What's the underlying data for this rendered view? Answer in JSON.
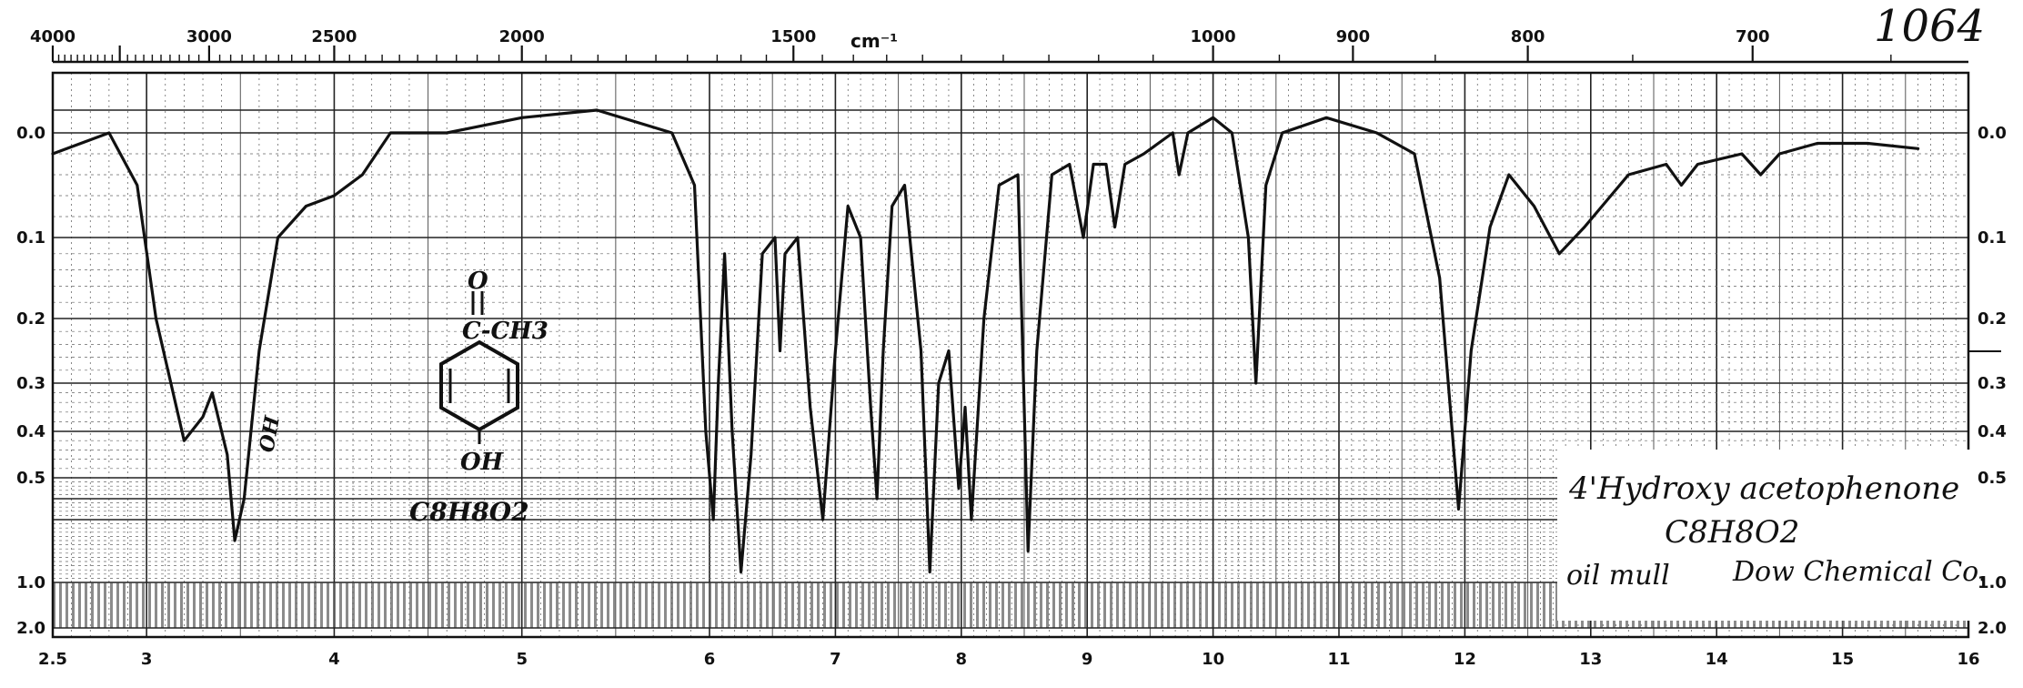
{
  "chart_data": {
    "type": "line",
    "title": "",
    "xlabel": "",
    "ylabel": "",
    "chart_number": "1064",
    "top_axis": {
      "unit_label": "cm⁻¹",
      "tick_labels": [
        "4000",
        "3000",
        "2500",
        "2000",
        "1500",
        "1000",
        "900",
        "800",
        "700"
      ],
      "tick_values": [
        4000,
        3000,
        2500,
        2000,
        1500,
        1000,
        900,
        800,
        700
      ]
    },
    "bottom_axis": {
      "tick_labels": [
        "2.5",
        "3",
        "4",
        "5",
        "6",
        "7",
        "8",
        "9",
        "10",
        "11",
        "12",
        "13",
        "14",
        "15",
        "16"
      ],
      "tick_values": [
        2.5,
        3,
        4,
        5,
        6,
        7,
        8,
        9,
        10,
        11,
        12,
        13,
        14,
        15,
        16
      ],
      "xlim": [
        2.5,
        16
      ]
    },
    "left_axis": {
      "tick_labels": [
        "0.0",
        "0.1",
        "0.2",
        "0.3",
        "0.4",
        "0.5",
        "1.0",
        "2.0"
      ],
      "tick_values": [
        0.0,
        0.1,
        0.2,
        0.3,
        0.4,
        0.5,
        1.0,
        2.0
      ]
    },
    "right_axis": {
      "tick_labels": [
        "0.0",
        "0.1",
        "0.2",
        "0.3",
        "0.4",
        "0.5",
        "1.0",
        "2.0"
      ],
      "tick_values": [
        0.0,
        0.1,
        0.2,
        0.3,
        0.4,
        0.5,
        1.0,
        2.0
      ]
    },
    "grid": true,
    "series": [
      {
        "points": [
          [
            2.5,
            0.02
          ],
          [
            2.65,
            0.01
          ],
          [
            2.8,
            0.0
          ],
          [
            2.95,
            0.05
          ],
          [
            3.05,
            0.2
          ],
          [
            3.2,
            0.42
          ],
          [
            3.3,
            0.37
          ],
          [
            3.35,
            0.32
          ],
          [
            3.43,
            0.45
          ],
          [
            3.47,
            0.8
          ],
          [
            3.52,
            0.6
          ],
          [
            3.6,
            0.25
          ],
          [
            3.7,
            0.1
          ],
          [
            3.85,
            0.07
          ],
          [
            4.0,
            0.06
          ],
          [
            4.15,
            0.04
          ],
          [
            4.3,
            0.0
          ],
          [
            4.6,
            0.0
          ],
          [
            5.0,
            -0.01
          ],
          [
            5.4,
            -0.015
          ],
          [
            5.8,
            0.0
          ],
          [
            5.92,
            0.05
          ],
          [
            5.98,
            0.4
          ],
          [
            6.03,
            0.7
          ],
          [
            6.07,
            0.3
          ],
          [
            6.12,
            0.12
          ],
          [
            6.18,
            0.4
          ],
          [
            6.25,
            0.95
          ],
          [
            6.33,
            0.45
          ],
          [
            6.42,
            0.12
          ],
          [
            6.52,
            0.1
          ],
          [
            6.56,
            0.25
          ],
          [
            6.6,
            0.12
          ],
          [
            6.7,
            0.1
          ],
          [
            6.8,
            0.35
          ],
          [
            6.9,
            0.7
          ],
          [
            7.0,
            0.25
          ],
          [
            7.1,
            0.07
          ],
          [
            7.2,
            0.1
          ],
          [
            7.28,
            0.35
          ],
          [
            7.33,
            0.6
          ],
          [
            7.38,
            0.25
          ],
          [
            7.45,
            0.07
          ],
          [
            7.55,
            0.05
          ],
          [
            7.68,
            0.25
          ],
          [
            7.75,
            0.95
          ],
          [
            7.82,
            0.3
          ],
          [
            7.9,
            0.25
          ],
          [
            7.98,
            0.55
          ],
          [
            8.03,
            0.35
          ],
          [
            8.08,
            0.7
          ],
          [
            8.18,
            0.2
          ],
          [
            8.3,
            0.05
          ],
          [
            8.45,
            0.04
          ],
          [
            8.53,
            0.85
          ],
          [
            8.6,
            0.25
          ],
          [
            8.72,
            0.04
          ],
          [
            8.86,
            0.03
          ],
          [
            8.97,
            0.1
          ],
          [
            9.05,
            0.03
          ],
          [
            9.15,
            0.03
          ],
          [
            9.22,
            0.09
          ],
          [
            9.3,
            0.03
          ],
          [
            9.45,
            0.02
          ],
          [
            9.68,
            0.0
          ],
          [
            9.73,
            0.04
          ],
          [
            9.8,
            0.0
          ],
          [
            10.0,
            -0.01
          ],
          [
            10.15,
            0.0
          ],
          [
            10.28,
            0.1
          ],
          [
            10.34,
            0.3
          ],
          [
            10.42,
            0.05
          ],
          [
            10.55,
            0.0
          ],
          [
            10.9,
            -0.01
          ],
          [
            11.3,
            0.0
          ],
          [
            11.6,
            0.02
          ],
          [
            11.8,
            0.15
          ],
          [
            11.95,
            0.65
          ],
          [
            12.05,
            0.25
          ],
          [
            12.2,
            0.09
          ],
          [
            12.35,
            0.04
          ],
          [
            12.55,
            0.07
          ],
          [
            12.75,
            0.12
          ],
          [
            12.95,
            0.09
          ],
          [
            13.3,
            0.04
          ],
          [
            13.6,
            0.03
          ],
          [
            13.72,
            0.05
          ],
          [
            13.85,
            0.03
          ],
          [
            14.2,
            0.02
          ],
          [
            14.35,
            0.04
          ],
          [
            14.5,
            0.02
          ],
          [
            14.8,
            0.01
          ],
          [
            15.2,
            0.01
          ],
          [
            15.6,
            0.015
          ]
        ]
      }
    ],
    "annotations": {
      "structure_carbonyl_o": "O",
      "structure_substituent": "C-CH3",
      "structure_hydroxyl": "OH",
      "structure_formula": "C8H8O2",
      "peak_note": "OH",
      "compound_name": "4'Hydroxy acetophenone",
      "formula": "C8H8O2",
      "sample_prep": "oil mull",
      "source": "Dow Chemical Co."
    }
  }
}
